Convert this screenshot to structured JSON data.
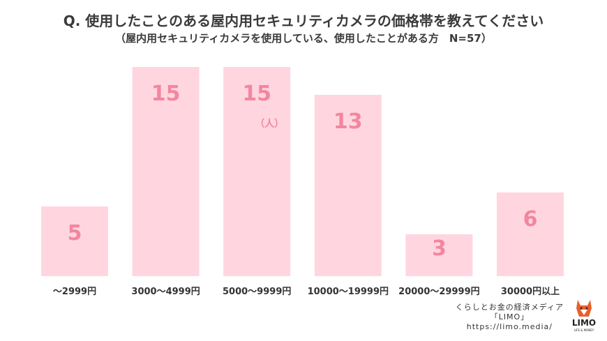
{
  "chart_data": {
    "type": "bar",
    "title": "Q. 使用したことのある屋内用セキュリティカメラの価格帯を教えてください",
    "subtitle": "（屋内用セキュリティカメラを使用している、使用したことがある方　N=57）",
    "categories": [
      "～2999円",
      "3000～4999円",
      "5000～9999円",
      "10000～19999円",
      "20000～29999円",
      "30000円以上"
    ],
    "values": [
      5,
      15,
      15,
      13,
      3,
      6
    ],
    "unit_label": "（人）",
    "ylim": [
      0,
      15
    ],
    "grid": false,
    "bar_color": "#ffd6e0",
    "label_color": "#f4869f"
  },
  "footer": {
    "line1": "くらしとお金の経済メディア",
    "line2": "「LIMO」",
    "line3": "https://limo.media/"
  },
  "logo": {
    "text": "LIMO",
    "subtext": "LIFE & MONEY",
    "icon": "fox-icon",
    "color": "#e8602c"
  }
}
